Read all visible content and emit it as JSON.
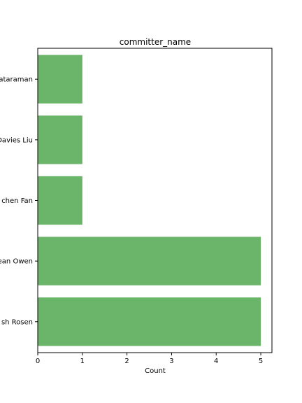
{
  "chart_data": {
    "type": "bar",
    "orientation": "horizontal",
    "title": "committer_name",
    "xlabel": "Count",
    "ylabel": "",
    "categories": [
      "ataraman",
      "Davies Liu",
      "chen Fan",
      "ean Owen",
      "sh Rosen"
    ],
    "values": [
      1,
      1,
      1,
      5,
      5
    ],
    "xlim": [
      0,
      5.25
    ],
    "xticks": [
      0,
      1,
      2,
      3,
      4,
      5
    ],
    "bar_color": "#6ab56a",
    "grid": false,
    "legend": "none"
  }
}
